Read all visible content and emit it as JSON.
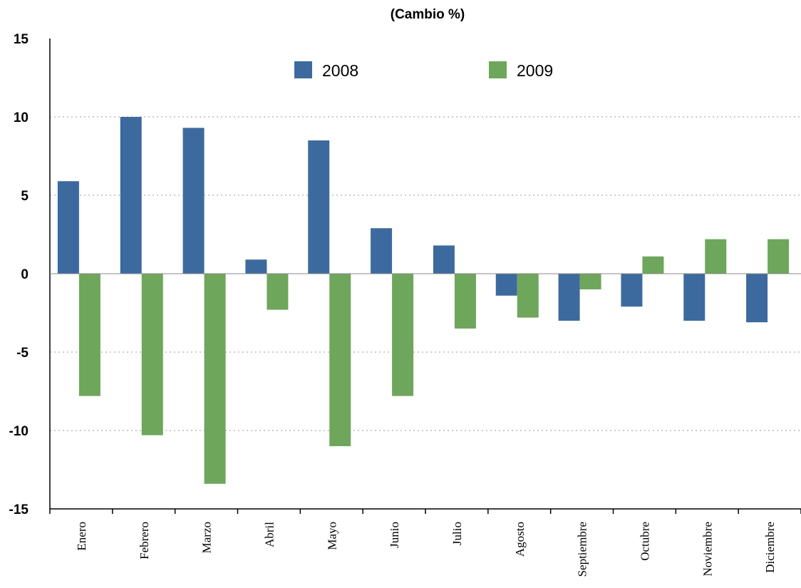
{
  "chart_data": {
    "type": "bar",
    "title": "(Cambio %)",
    "xlabel": "",
    "ylabel": "",
    "categories": [
      "Enero",
      "Febrero",
      "Marzo",
      "Abril",
      "Mayo",
      "Junio",
      "Julio",
      "Agosto",
      "Septiembre",
      "Octubre",
      "Noviembre",
      "Diciembre"
    ],
    "series": [
      {
        "name": "2008",
        "color": "#3d6a9e",
        "values": [
          5.9,
          10.0,
          9.3,
          0.9,
          8.5,
          2.9,
          1.8,
          -1.4,
          -3.0,
          -2.1,
          -3.0,
          -3.1
        ]
      },
      {
        "name": "2009",
        "color": "#6ea65c",
        "values": [
          -7.8,
          -10.3,
          -13.4,
          -2.3,
          -11.0,
          -7.8,
          -3.5,
          -2.8,
          -1.0,
          1.1,
          2.2,
          2.2
        ]
      }
    ],
    "ylim": [
      -15,
      15
    ],
    "yticks": [
      15,
      10,
      5,
      0,
      -5,
      -10,
      -15
    ],
    "grid": true,
    "legend": "top-center"
  }
}
